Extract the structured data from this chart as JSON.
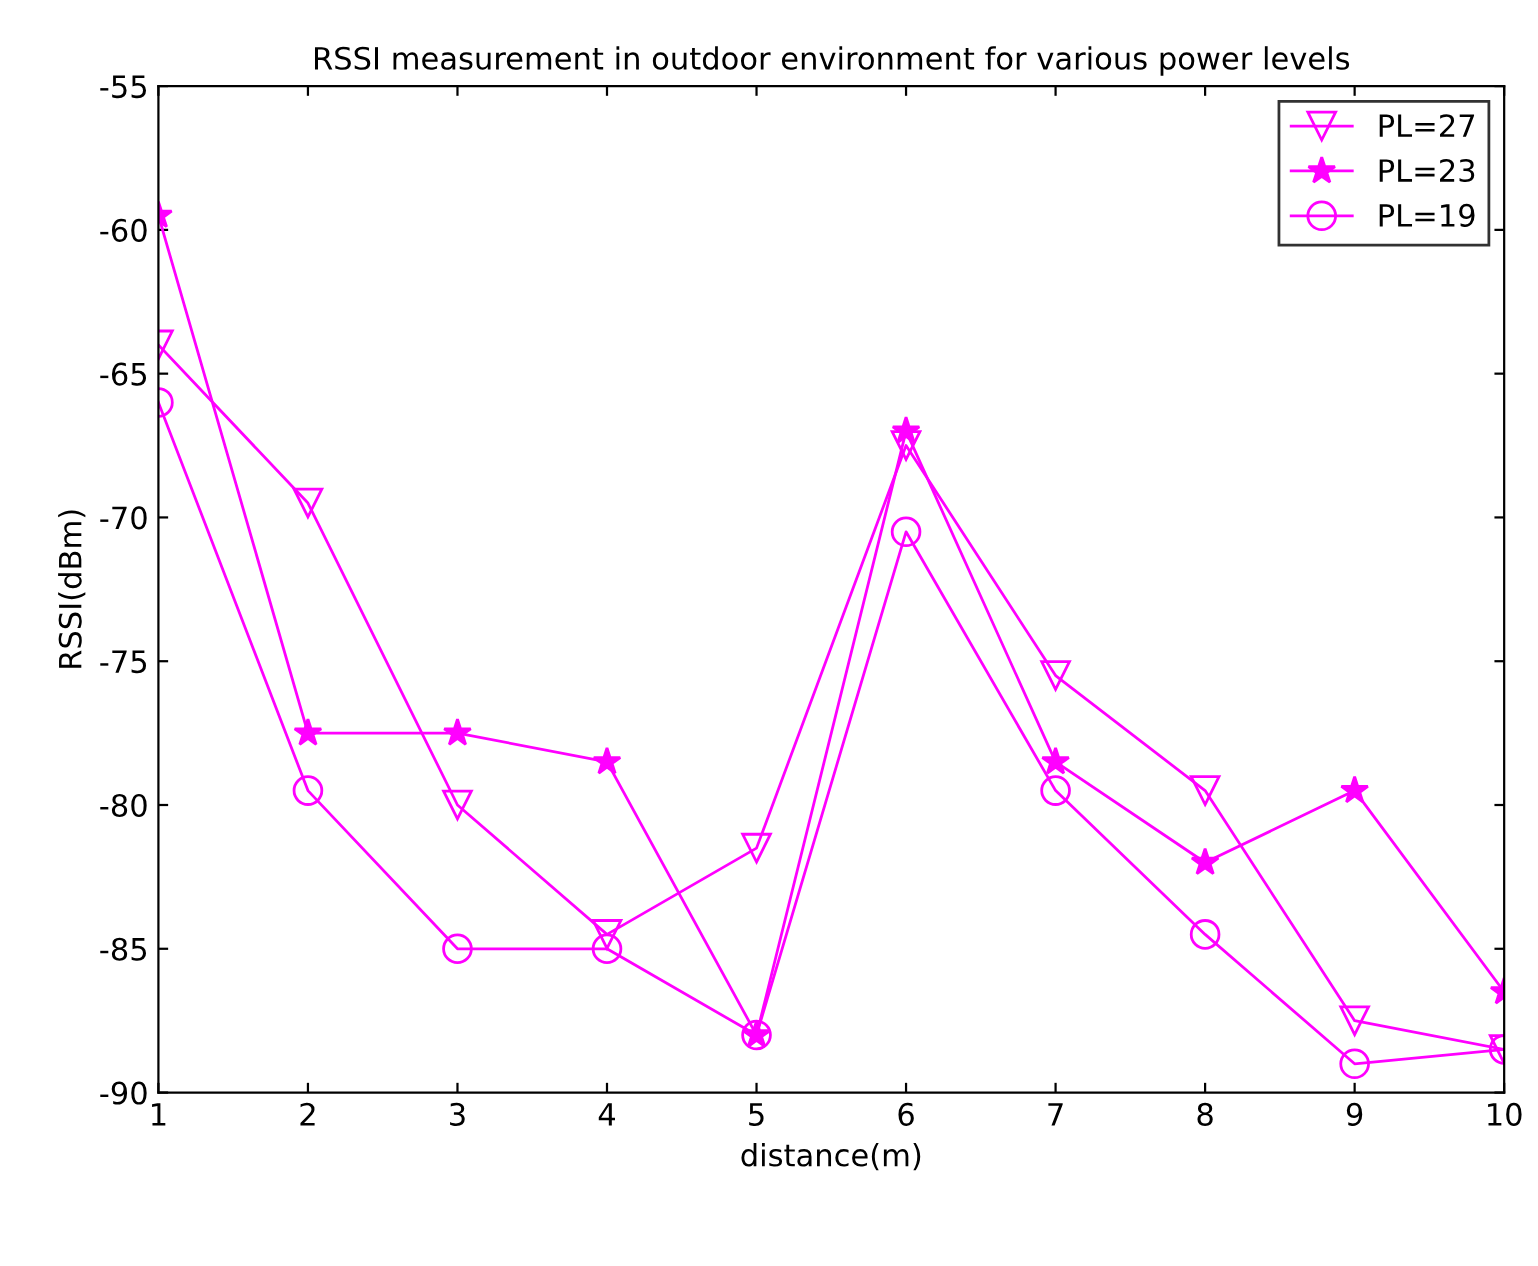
{
  "chart_data": {
    "type": "line",
    "title": "RSSI measurement in outdoor environment for various power levels",
    "xlabel": "distance(m)",
    "ylabel": "RSSI(dBm)",
    "x": [
      1,
      2,
      3,
      4,
      5,
      6,
      7,
      8,
      9,
      10
    ],
    "series": [
      {
        "name": "PL=27",
        "color": "#ff00ff",
        "marker": "triangle",
        "values": [
          -64,
          -69.5,
          -80,
          -84.5,
          -81.5,
          -67.5,
          -75.5,
          -79.5,
          -87.5,
          -88.5
        ]
      },
      {
        "name": "PL=23",
        "color": "#ff00ff",
        "marker": "star",
        "values": [
          -59.5,
          -77.5,
          -77.5,
          -78.5,
          -88,
          -67,
          -78.5,
          -82,
          -79.5,
          -86.5
        ]
      },
      {
        "name": "PL=19",
        "color": "#ff00ff",
        "marker": "circle",
        "values": [
          -66,
          -79.5,
          -85,
          -85,
          -88,
          -70.5,
          -79.5,
          -84.5,
          -89,
          -88.5
        ]
      }
    ],
    "xlim": [
      1,
      10
    ],
    "xticks": [
      1,
      2,
      3,
      4,
      5,
      6,
      7,
      8,
      9,
      10
    ],
    "ylim": [
      -90,
      -55
    ],
    "yticks": [
      -90,
      -85,
      -80,
      -75,
      -70,
      -65,
      -60,
      -55
    ],
    "grid": false,
    "legend": "top right",
    "line_style": "solid"
  }
}
